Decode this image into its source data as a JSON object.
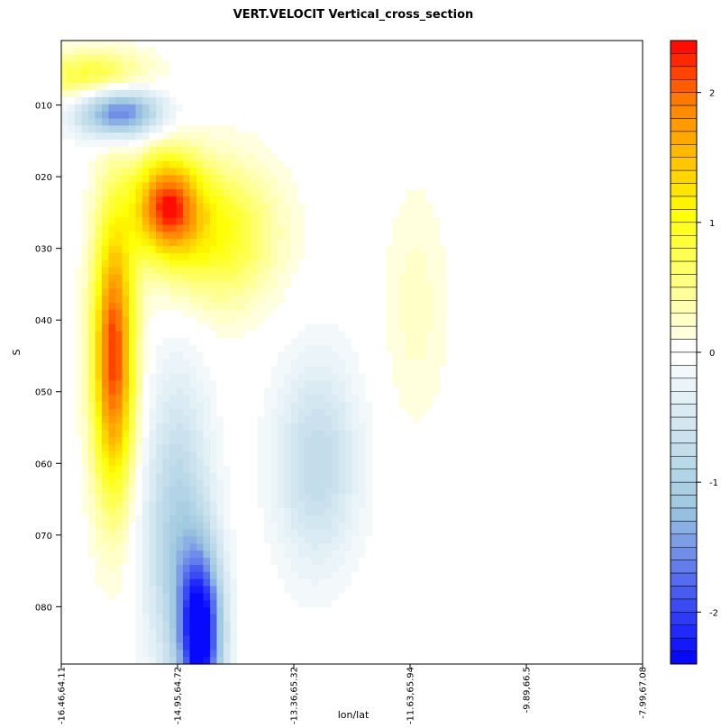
{
  "chart_data": {
    "type": "heatmap",
    "title": "VERT.VELOCIT Vertical_cross_section",
    "xlabel": "lon/lat",
    "ylabel": "S",
    "x_tick_labels": [
      "-16.46,64.11",
      "-14.95,64.72",
      "-13.36,65.32",
      "-11.63,65.94",
      "-9.89,66.5",
      "-7.99,67.08"
    ],
    "y_tick_labels": [
      "010",
      "020",
      "030",
      "040",
      "050",
      "060",
      "070",
      "080"
    ],
    "y_tick_values": [
      10,
      20,
      30,
      40,
      50,
      60,
      70,
      80
    ],
    "x_range": [
      0,
      5
    ],
    "y_range": [
      1,
      88
    ],
    "y_inverted": true,
    "colorbar": {
      "range": [
        -2.4,
        2.4
      ],
      "ticks": [
        2,
        1,
        0,
        -1,
        -2
      ],
      "tick_labels": [
        "2",
        "1",
        "0",
        "-1",
        "-2"
      ],
      "levels": 48,
      "neutral_band": [
        -0.1,
        0.1
      ],
      "colors": {
        "min": "#0000ff",
        "neg_mid": "#9ec8df",
        "neg_light": "#e8f3f8",
        "zero": "#ffffff",
        "pos_light": "#ffffc0",
        "pos_mid": "#ffff00",
        "pos_orange": "#ff8000",
        "max": "#ff0000"
      }
    },
    "features": [
      {
        "kind": "positive",
        "x": 0.45,
        "y": 45,
        "sx": 0.13,
        "sy": 14,
        "value": 2.2
      },
      {
        "kind": "positive",
        "x": 0.9,
        "y": 24,
        "sx": 0.2,
        "sy": 5,
        "value": 2.0
      },
      {
        "kind": "positive",
        "x": 0.25,
        "y": 6,
        "sx": 0.35,
        "sy": 2.5,
        "value": 0.9
      },
      {
        "kind": "positive",
        "x": 1.35,
        "y": 28,
        "sx": 0.35,
        "sy": 7,
        "value": 1.0
      },
      {
        "kind": "negative",
        "x": 0.5,
        "y": 11,
        "sx": 0.25,
        "sy": 2.5,
        "value": -1.8
      },
      {
        "kind": "negative",
        "x": 1.2,
        "y": 84,
        "sx": 0.13,
        "sy": 8,
        "value": -2.4
      },
      {
        "kind": "negative",
        "x": 1.0,
        "y": 70,
        "sx": 0.2,
        "sy": 15,
        "value": -1.0
      },
      {
        "kind": "negative",
        "x": 2.2,
        "y": 60,
        "sx": 0.25,
        "sy": 10,
        "value": -0.8
      },
      {
        "kind": "positive",
        "x": 3.05,
        "y": 38,
        "sx": 0.2,
        "sy": 12,
        "value": 0.25
      }
    ]
  }
}
